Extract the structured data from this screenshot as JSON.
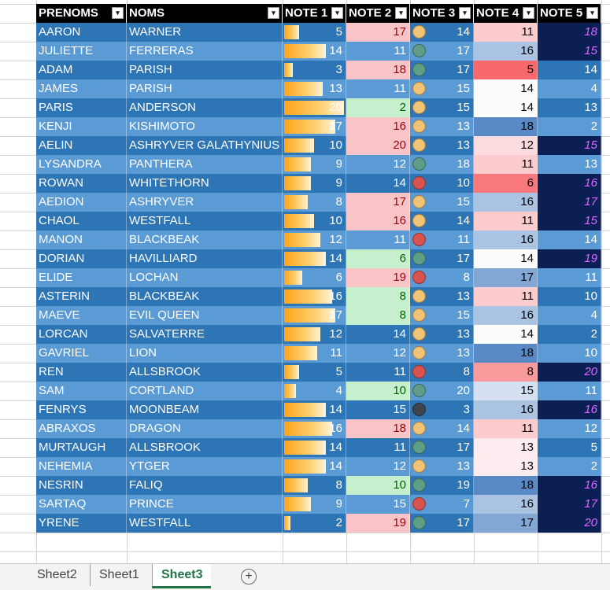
{
  "headers": [
    "PRENOMS",
    "NOMS",
    "NOTE 1",
    "NOTE 2",
    "NOTE 3",
    "NOTE 4",
    "NOTE 5"
  ],
  "filter_glyph": "▾",
  "add_sheet_glyph": "+",
  "sheet_tabs": [
    {
      "label": "Sheet2",
      "active": false
    },
    {
      "label": "Sheet1",
      "active": false
    },
    {
      "label": "Sheet3",
      "active": true
    }
  ],
  "colors": {
    "band_dark": "#2e75b6",
    "band_light": "#5b9bd5",
    "header_bg": "#000000",
    "active_tab": "#217346",
    "note2_low": "#f8c4c8",
    "note2_high": "#c6efce",
    "note5_high_bg": "#0b1f55",
    "note5_high_text": "#e066ff",
    "dot_green": "#5e9e86",
    "dot_yellow": "#f1c374",
    "dot_red": "#d9534f",
    "dot_dark": "#3f4350"
  },
  "rows": [
    {
      "prenom": "AARON",
      "nom": "WARNER",
      "n1": "5",
      "n2": "17",
      "n3": "14",
      "n4": "11",
      "n5": "18"
    },
    {
      "prenom": "JULIETTE",
      "nom": "FERRERAS",
      "n1": "14",
      "n2": "11",
      "n3": "17",
      "n4": "16",
      "n5": "15"
    },
    {
      "prenom": "ADAM",
      "nom": "PARISH",
      "n1": "3",
      "n2": "18",
      "n3": "17",
      "n4": "5",
      "n5": "14"
    },
    {
      "prenom": "JAMES",
      "nom": "PARISH",
      "n1": "13",
      "n2": "11",
      "n3": "15",
      "n4": "14",
      "n5": "4"
    },
    {
      "prenom": "PARIS",
      "nom": "ANDERSON",
      "n1": "20",
      "n2": "2",
      "n3": "15",
      "n4": "14",
      "n5": "13"
    },
    {
      "prenom": "KENJI",
      "nom": "KISHIMOTO",
      "n1": "17",
      "n2": "16",
      "n3": "13",
      "n4": "18",
      "n5": "2"
    },
    {
      "prenom": "AELIN",
      "nom": "ASHRYVER GALATHYNIUS",
      "n1": "10",
      "n2": "20",
      "n3": "13",
      "n4": "12",
      "n5": "15"
    },
    {
      "prenom": "LYSANDRA",
      "nom": "PANTHERA",
      "n1": "9",
      "n2": "12",
      "n3": "18",
      "n4": "11",
      "n5": "13"
    },
    {
      "prenom": "ROWAN",
      "nom": "WHITETHORN",
      "n1": "9",
      "n2": "14",
      "n3": "10",
      "n4": "6",
      "n5": "16"
    },
    {
      "prenom": "AEDION",
      "nom": "ASHRYVER",
      "n1": "8",
      "n2": "17",
      "n3": "15",
      "n4": "16",
      "n5": "17"
    },
    {
      "prenom": "CHAOL",
      "nom": "WESTFALL",
      "n1": "10",
      "n2": "16",
      "n3": "14",
      "n4": "11",
      "n5": "15"
    },
    {
      "prenom": "MANON",
      "nom": "BLACKBEAK",
      "n1": "12",
      "n2": "11",
      "n3": "11",
      "n4": "16",
      "n5": "14"
    },
    {
      "prenom": "DORIAN",
      "nom": "HAVILLIARD",
      "n1": "14",
      "n2": "6",
      "n3": "17",
      "n4": "14",
      "n5": "19"
    },
    {
      "prenom": "ELIDE",
      "nom": "LOCHAN",
      "n1": "6",
      "n2": "19",
      "n3": "8",
      "n4": "17",
      "n5": "11"
    },
    {
      "prenom": "ASTERIN",
      "nom": "BLACKBEAK",
      "n1": "16",
      "n2": "8",
      "n3": "13",
      "n4": "11",
      "n5": "10"
    },
    {
      "prenom": "MAEVE",
      "nom": "EVIL QUEEN",
      "n1": "17",
      "n2": "8",
      "n3": "15",
      "n4": "16",
      "n5": "4"
    },
    {
      "prenom": "LORCAN",
      "nom": "SALVATERRE",
      "n1": "12",
      "n2": "14",
      "n3": "13",
      "n4": "14",
      "n5": "2"
    },
    {
      "prenom": "GAVRIEL",
      "nom": "LION",
      "n1": "11",
      "n2": "12",
      "n3": "13",
      "n4": "18",
      "n5": "10"
    },
    {
      "prenom": "REN",
      "nom": "ALLSBROOK",
      "n1": "5",
      "n2": "11",
      "n3": "8",
      "n4": "8",
      "n5": "20"
    },
    {
      "prenom": "SAM",
      "nom": "CORTLAND",
      "n1": "4",
      "n2": "10",
      "n3": "20",
      "n4": "15",
      "n5": "11"
    },
    {
      "prenom": "FENRYS",
      "nom": "MOONBEAM",
      "n1": "14",
      "n2": "15",
      "n3": "3",
      "n4": "16",
      "n5": "16"
    },
    {
      "prenom": "ABRAXOS",
      "nom": "DRAGON",
      "n1": "16",
      "n2": "18",
      "n3": "14",
      "n4": "11",
      "n5": "12"
    },
    {
      "prenom": "MURTAUGH",
      "nom": "ALLSBROOK",
      "n1": "14",
      "n2": "11",
      "n3": "17",
      "n4": "13",
      "n5": "5"
    },
    {
      "prenom": "NEHEMIA",
      "nom": "YTGER",
      "n1": "14",
      "n2": "12",
      "n3": "13",
      "n4": "13",
      "n5": "2"
    },
    {
      "prenom": "NESRIN",
      "nom": "FALIQ",
      "n1": "8",
      "n2": "10",
      "n3": "19",
      "n4": "18",
      "n5": "16"
    },
    {
      "prenom": "SARTAQ",
      "nom": "PRINCE",
      "n1": "9",
      "n2": "15",
      "n3": "7",
      "n4": "16",
      "n5": "17"
    },
    {
      "prenom": "YRENE",
      "nom": "WESTFALL",
      "n1": "2",
      "n2": "19",
      "n3": "17",
      "n4": "17",
      "n5": "20"
    }
  ]
}
